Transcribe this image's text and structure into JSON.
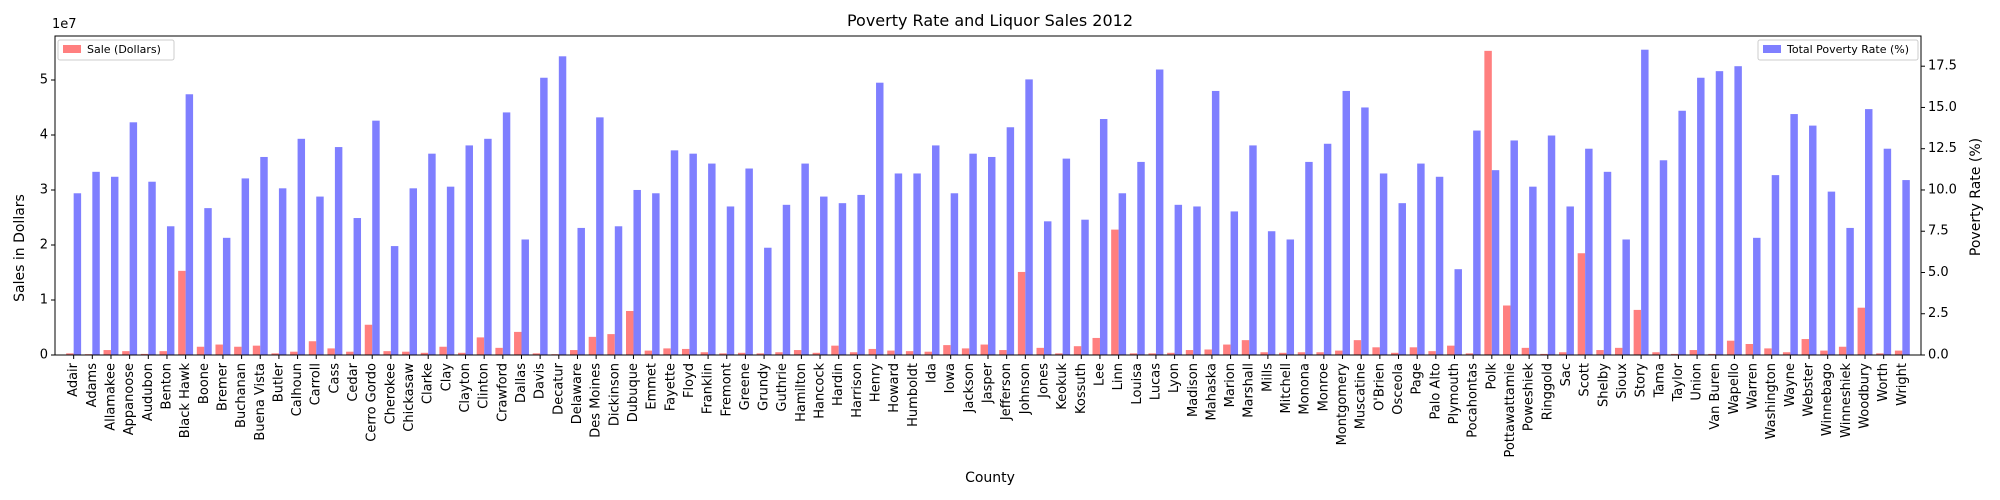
{
  "chart_data": {
    "type": "bar",
    "title": "Poverty Rate and Liquor Sales 2012",
    "xlabel": "County",
    "y_left_label": "Sales in Dollars",
    "y_left_multiplier": "1e7",
    "y_right_label": "Poverty Rate (%)",
    "y_left_lim": [
      0,
      58000000
    ],
    "y_right_lim": [
      0,
      19.33
    ],
    "y_left_ticks": [
      0,
      10000000,
      20000000,
      30000000,
      40000000,
      50000000
    ],
    "y_left_tick_labels": [
      "0",
      "1",
      "2",
      "3",
      "4",
      "5"
    ],
    "y_right_ticks": [
      0,
      2.5,
      5.0,
      7.5,
      10.0,
      12.5,
      15.0,
      17.5
    ],
    "y_right_tick_labels": [
      "0.0",
      "2.5",
      "5.0",
      "7.5",
      "10.0",
      "12.5",
      "15.0",
      "17.5"
    ],
    "grid": false,
    "categories": [
      "Adair",
      "Adams",
      "Allamakee",
      "Appanoose",
      "Audubon",
      "Benton",
      "Black Hawk",
      "Boone",
      "Bremer",
      "Buchanan",
      "Buena Vista",
      "Butler",
      "Calhoun",
      "Carroll",
      "Cass",
      "Cedar",
      "Cerro Gordo",
      "Cherokee",
      "Chickasaw",
      "Clarke",
      "Clay",
      "Clayton",
      "Clinton",
      "Crawford",
      "Dallas",
      "Davis",
      "Decatur",
      "Delaware",
      "Des Moines",
      "Dickinson",
      "Dubuque",
      "Emmet",
      "Fayette",
      "Floyd",
      "Franklin",
      "Fremont",
      "Greene",
      "Grundy",
      "Guthrie",
      "Hamilton",
      "Hancock",
      "Hardin",
      "Harrison",
      "Henry",
      "Howard",
      "Humboldt",
      "Ida",
      "Iowa",
      "Jackson",
      "Jasper",
      "Jefferson",
      "Johnson",
      "Jones",
      "Keokuk",
      "Kossuth",
      "Lee",
      "Linn",
      "Louisa",
      "Lucas",
      "Lyon",
      "Madison",
      "Mahaska",
      "Marion",
      "Marshall",
      "Mills",
      "Mitchell",
      "Monona",
      "Monroe",
      "Montgomery",
      "Muscatine",
      "O'Brien",
      "Osceola",
      "Page",
      "Palo Alto",
      "Plymouth",
      "Pocahontas",
      "Polk",
      "Pottawattamie",
      "Poweshiek",
      "Ringgold",
      "Sac",
      "Scott",
      "Shelby",
      "Sioux",
      "Story",
      "Tama",
      "Taylor",
      "Union",
      "Van Buren",
      "Wapello",
      "Warren",
      "Washington",
      "Wayne",
      "Webster",
      "Winnebago",
      "Winneshiek",
      "Woodbury",
      "Worth",
      "Wright"
    ],
    "series": [
      {
        "name": "Sale (Dollars)",
        "axis": "left",
        "color": "#ff7f7f",
        "values": [
          300000,
          150000,
          900000,
          700000,
          200000,
          700000,
          15300000,
          1500000,
          1900000,
          1500000,
          1700000,
          300000,
          600000,
          2500000,
          1200000,
          600000,
          5500000,
          700000,
          600000,
          400000,
          1500000,
          400000,
          3200000,
          1300000,
          4200000,
          300000,
          150000,
          900000,
          3300000,
          3800000,
          8000000,
          800000,
          1200000,
          1100000,
          500000,
          300000,
          400000,
          300000,
          500000,
          900000,
          400000,
          1700000,
          500000,
          1100000,
          800000,
          700000,
          600000,
          1800000,
          1200000,
          1900000,
          900000,
          15100000,
          1300000,
          300000,
          1600000,
          3100000,
          22800000,
          300000,
          300000,
          400000,
          900000,
          1000000,
          1900000,
          2700000,
          500000,
          400000,
          500000,
          500000,
          800000,
          2700000,
          1400000,
          400000,
          1400000,
          700000,
          1700000,
          300000,
          55300000,
          9000000,
          1300000,
          200000,
          500000,
          18500000,
          900000,
          1300000,
          8200000,
          500000,
          200000,
          900000,
          200000,
          2600000,
          2000000,
          1200000,
          500000,
          2900000,
          800000,
          1500000,
          8600000,
          300000,
          800000
        ]
      },
      {
        "name": "Total Poverty Rate (%)",
        "axis": "right",
        "color": "#7f7fff",
        "values": [
          9.8,
          11.1,
          10.8,
          14.1,
          10.5,
          7.8,
          15.8,
          8.9,
          7.1,
          10.7,
          12.0,
          10.1,
          13.1,
          9.6,
          12.6,
          8.3,
          14.2,
          6.6,
          10.1,
          12.2,
          10.2,
          12.7,
          13.1,
          14.7,
          7.0,
          16.8,
          18.1,
          7.7,
          14.4,
          7.8,
          10.0,
          9.8,
          12.4,
          12.2,
          11.6,
          9.0,
          11.3,
          6.5,
          9.1,
          11.6,
          9.6,
          9.2,
          9.7,
          16.5,
          11.0,
          11.0,
          12.7,
          9.8,
          12.2,
          12.0,
          13.8,
          16.7,
          8.1,
          11.9,
          8.2,
          14.3,
          9.8,
          11.7,
          17.3,
          9.1,
          9.0,
          16.0,
          8.7,
          12.7,
          7.5,
          7.0,
          11.7,
          12.8,
          16.0,
          15.0,
          11.0,
          9.2,
          11.6,
          10.8,
          5.2,
          13.6,
          11.2,
          13.0,
          10.2,
          13.3,
          9.0,
          12.5,
          11.1,
          7.0,
          18.5,
          11.8,
          14.8,
          16.8,
          17.2,
          17.5,
          7.1,
          10.9,
          14.6,
          13.9,
          9.9,
          7.7,
          14.9,
          12.5,
          10.6
        ]
      }
    ],
    "legend_left": {
      "label": "Sale (Dollars)",
      "placement": "upper-left"
    },
    "legend_right": {
      "label": "Total Poverty Rate (%)",
      "placement": "upper-right"
    }
  }
}
